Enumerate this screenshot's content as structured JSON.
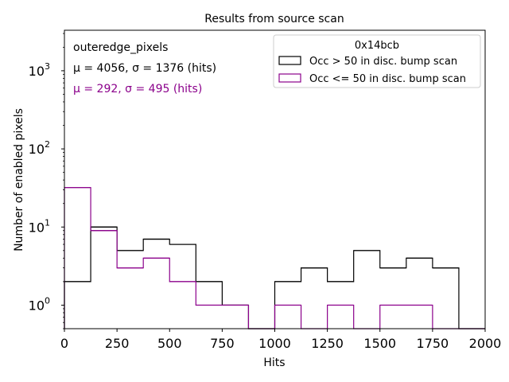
{
  "chart_data": {
    "type": "histogram",
    "title": "Results from source scan",
    "xlabel": "Hits",
    "ylabel": "Number of enabled pixels",
    "xlim": [
      0,
      2000
    ],
    "ylim": [
      0.5,
      3300
    ],
    "yscale": "log",
    "xticks": [
      0,
      250,
      500,
      750,
      1000,
      1250,
      1500,
      1750,
      2000
    ],
    "xtick_labels": [
      "0",
      "250",
      "500",
      "750",
      "1000",
      "1250",
      "1500",
      "1750",
      "2000"
    ],
    "yticks": [
      1,
      10,
      100,
      1000
    ],
    "ytick_labels": [
      "10^0",
      "10^1",
      "10^2",
      "10^3"
    ],
    "bin_edges": [
      0,
      125,
      250,
      375,
      500,
      625,
      750,
      875,
      1000,
      1125,
      1250,
      1375,
      1500,
      1625,
      1750,
      1875,
      2000
    ],
    "series": [
      {
        "name": "Occ > 50 in disc. bump scan",
        "color": "#000000",
        "values": [
          2,
          10,
          5,
          7,
          6,
          2,
          1,
          0,
          2,
          3,
          2,
          5,
          3,
          4,
          3,
          0
        ]
      },
      {
        "name": "Occ <= 50 in disc. bump scan",
        "color": "#8b008b",
        "values": [
          32,
          9,
          3,
          4,
          2,
          1,
          1,
          0,
          1,
          0,
          1,
          0,
          1,
          1,
          0,
          0
        ]
      }
    ],
    "legend": {
      "title": "0x14bcb",
      "placement": "top-right"
    },
    "annotations": [
      {
        "text": "outeredge_pixels",
        "color": "#000000"
      },
      {
        "text": "μ = 4056, σ = 1376 (hits)",
        "color": "#000000"
      },
      {
        "text": "μ = 292, σ = 495 (hits)",
        "color": "#8b008b"
      }
    ],
    "grid": false
  }
}
